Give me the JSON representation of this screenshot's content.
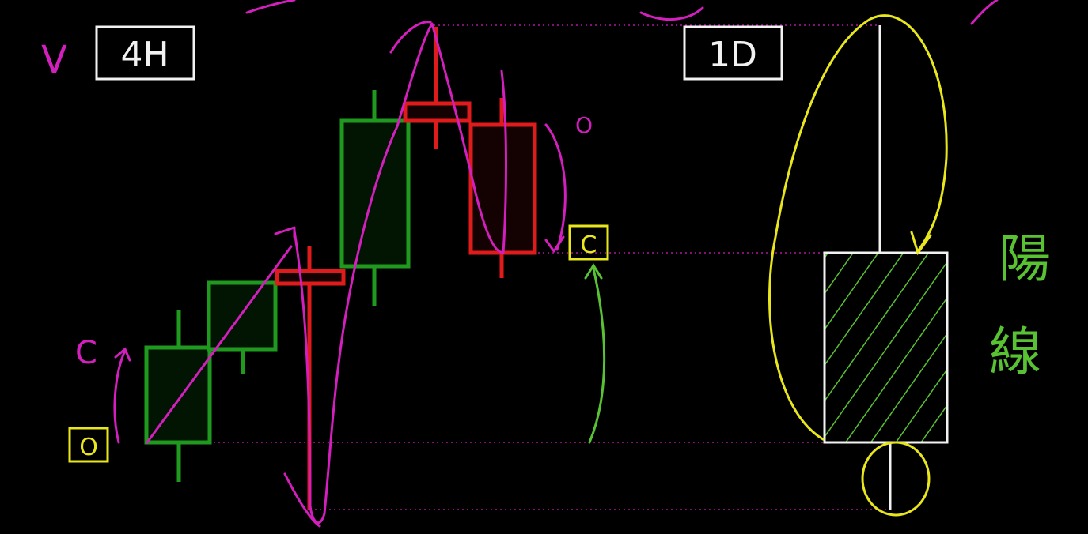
{
  "board": {
    "background": "#000000",
    "colors": {
      "bull": "#1f9a1f",
      "bear": "#e01b1b",
      "ink_magenta": "#d21fbd",
      "ink_yellow": "#e8e61c",
      "ink_green": "#58c233",
      "frame": "#f2f2f2"
    }
  },
  "labels": {
    "tf_4h": "4H",
    "tf_1d": "1D",
    "open_mark": "O",
    "close_mark_left": "C",
    "close_mark_right": "C",
    "open_mark_top": "O",
    "v_mark": "V",
    "bullish_kanji_1": "陽",
    "bullish_kanji_2": "線"
  },
  "candles_4h": [
    {
      "color": "bull"
    },
    {
      "color": "bull"
    },
    {
      "color": "bear"
    },
    {
      "color": "bull"
    },
    {
      "color": "bear"
    },
    {
      "color": "bear"
    }
  ],
  "candle_1d": {
    "color": "white",
    "fill": "green hatch"
  },
  "icons": {
    "arrow_up": "arrow-up-icon",
    "arrow_down": "arrow-down-icon"
  }
}
